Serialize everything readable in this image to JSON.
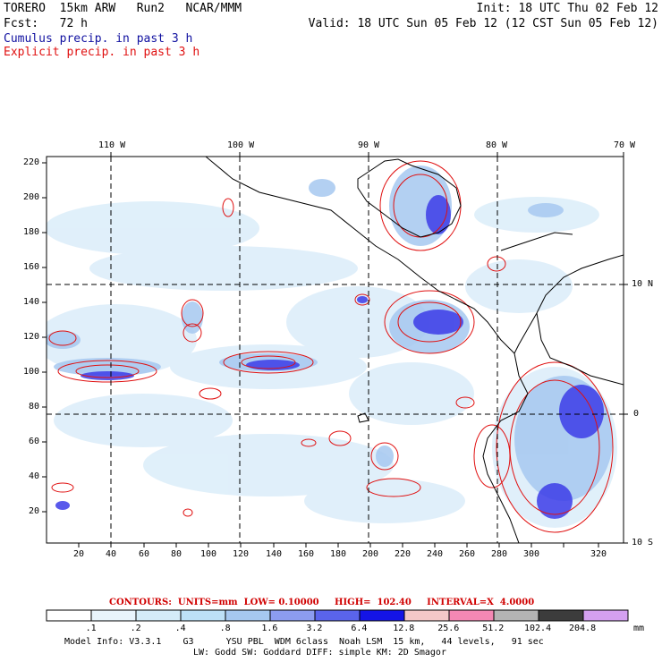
{
  "header": {
    "line1_left": "TORERO  15km ARW   Run2   NCAR/MMM",
    "line1_right": "Init: 18 UTC Thu 02 Feb 12",
    "line2_left": "Fcst:   72 h",
    "line2_right": "Valid: 18 UTC Sun 05 Feb 12 (12 CST Sun 05 Feb 12)",
    "legend_cumulus": "Cumulus precip. in past 3 h",
    "legend_explicit": "Explicit precip. in past 3 h"
  },
  "map": {
    "top_lon_labels": [
      "110 W",
      "100 W",
      "90 W",
      "80 W",
      "70 W"
    ],
    "right_lat_labels": [
      "10 N",
      "0",
      "10 S"
    ],
    "left_axis_ticks": [
      "220",
      "200",
      "180",
      "160",
      "140",
      "120",
      "100",
      "80",
      "60",
      "40",
      "20"
    ],
    "bottom_axis_ticks": [
      "20",
      "40",
      "60",
      "80",
      "100",
      "120",
      "140",
      "160",
      "180",
      "200",
      "220",
      "240",
      "260",
      "280",
      "300",
      "320"
    ]
  },
  "contours_info": {
    "text": "CONTOURS:  UNITS=mm  LOW= 0.10000     HIGH=  102.40     INTERVAL=X  4.0000"
  },
  "colorbar": {
    "colors": [
      "#ffffff",
      "#e8f4fc",
      "#d4ecf8",
      "#bde0f6",
      "#a6c8f0",
      "#8c9cf0",
      "#5a64ec",
      "#1414e6",
      "#f4c8c8",
      "#f488b4",
      "#b4b4b4",
      "#3c3c3c",
      "#d4a0f0"
    ],
    "labels": [
      ".1",
      ".2",
      ".4",
      ".8",
      "1.6",
      "3.2",
      "6.4",
      "12.8",
      "25.6",
      "51.2",
      "102.4",
      "204.8"
    ],
    "units": "mm"
  },
  "footer": {
    "line1": "Model Info: V3.3.1    G3      YSU PBL  WDM 6class  Noah LSM  15 km,   44 levels,   91 sec",
    "line2": "LW: Godd SW: Goddard DIFF: simple KM: 2D Smagor"
  }
}
